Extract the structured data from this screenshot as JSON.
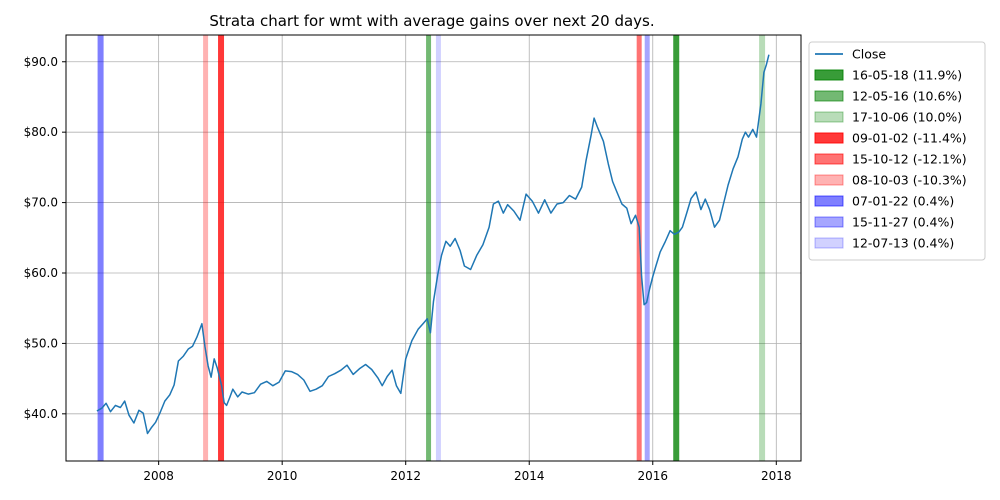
{
  "chart_data": {
    "type": "line",
    "title": "Strata chart for wmt with average gains over next 20 days.",
    "xlabel": "",
    "ylabel": "",
    "grid": true,
    "legend_position": "right-outside-top",
    "xlim": [
      2006.5,
      2018.4
    ],
    "ylim": [
      33.3,
      93.8
    ],
    "x_ticks": [
      2008,
      2010,
      2012,
      2014,
      2016,
      2018
    ],
    "x_tick_labels": [
      "2008",
      "2010",
      "2012",
      "2014",
      "2016",
      "2018"
    ],
    "y_ticks": [
      40,
      50,
      60,
      70,
      80,
      90
    ],
    "y_tick_labels": [
      "$40.0",
      "$50.0",
      "$60.0",
      "$70.0",
      "$80.0",
      "$90.0"
    ],
    "series": [
      {
        "name": "Close",
        "color": "#1f77b4",
        "x": [
          2007.0,
          2007.08,
          2007.15,
          2007.22,
          2007.3,
          2007.38,
          2007.45,
          2007.52,
          2007.6,
          2007.68,
          2007.75,
          2007.82,
          2007.88,
          2007.95,
          2008.02,
          2008.1,
          2008.18,
          2008.25,
          2008.32,
          2008.4,
          2008.48,
          2008.55,
          2008.62,
          2008.7,
          2008.75,
          2008.8,
          2008.85,
          2008.9,
          2008.95,
          2009.02,
          2009.06,
          2009.1,
          2009.15,
          2009.2,
          2009.28,
          2009.35,
          2009.45,
          2009.55,
          2009.65,
          2009.75,
          2009.85,
          2009.95,
          2010.05,
          2010.15,
          2010.25,
          2010.35,
          2010.45,
          2010.55,
          2010.65,
          2010.75,
          2010.85,
          2010.95,
          2011.05,
          2011.15,
          2011.25,
          2011.35,
          2011.45,
          2011.55,
          2011.62,
          2011.7,
          2011.78,
          2011.85,
          2011.92,
          2012.0,
          2012.1,
          2012.2,
          2012.28,
          2012.35,
          2012.4,
          2012.45,
          2012.52,
          2012.58,
          2012.65,
          2012.72,
          2012.8,
          2012.88,
          2012.95,
          2013.05,
          2013.15,
          2013.25,
          2013.35,
          2013.42,
          2013.5,
          2013.58,
          2013.65,
          2013.75,
          2013.85,
          2013.95,
          2014.05,
          2014.15,
          2014.25,
          2014.35,
          2014.45,
          2014.55,
          2014.65,
          2014.75,
          2014.85,
          2014.92,
          2015.0,
          2015.05,
          2015.1,
          2015.2,
          2015.28,
          2015.35,
          2015.42,
          2015.5,
          2015.58,
          2015.65,
          2015.72,
          2015.78,
          2015.82,
          2015.86,
          2015.9,
          2015.95,
          2016.0,
          2016.05,
          2016.12,
          2016.2,
          2016.28,
          2016.35,
          2016.42,
          2016.48,
          2016.55,
          2016.62,
          2016.7,
          2016.78,
          2016.85,
          2016.92,
          2017.0,
          2017.08,
          2017.15,
          2017.22,
          2017.3,
          2017.38,
          2017.45,
          2017.5,
          2017.55,
          2017.62,
          2017.68,
          2017.75,
          2017.8,
          2017.84,
          2017.88
        ],
        "values": [
          40.4,
          40.8,
          41.5,
          40.3,
          41.2,
          40.9,
          41.8,
          39.8,
          38.7,
          40.5,
          40.1,
          37.2,
          38.0,
          38.8,
          40.1,
          41.8,
          42.7,
          44.1,
          47.5,
          48.2,
          49.2,
          49.6,
          50.9,
          52.8,
          49.5,
          46.8,
          45.2,
          47.8,
          46.5,
          44.0,
          41.6,
          41.2,
          42.3,
          43.5,
          42.4,
          43.1,
          42.8,
          43.0,
          44.2,
          44.6,
          44.0,
          44.5,
          46.1,
          46.0,
          45.6,
          44.8,
          43.2,
          43.5,
          44.0,
          45.3,
          45.7,
          46.2,
          46.9,
          45.6,
          46.4,
          47.0,
          46.3,
          45.1,
          44.0,
          45.3,
          46.2,
          44.0,
          42.9,
          47.8,
          50.4,
          52.0,
          52.8,
          53.5,
          51.5,
          56.0,
          59.8,
          62.5,
          64.5,
          63.8,
          64.9,
          63.2,
          61.0,
          60.5,
          62.5,
          64.0,
          66.5,
          69.8,
          70.2,
          68.5,
          69.7,
          68.8,
          67.5,
          71.2,
          70.2,
          68.5,
          70.4,
          68.5,
          69.8,
          70.0,
          71.0,
          70.5,
          72.2,
          76.0,
          79.5,
          82.0,
          80.8,
          78.7,
          75.5,
          73.0,
          71.5,
          69.8,
          69.2,
          67.0,
          68.2,
          66.5,
          59.5,
          55.5,
          55.8,
          57.8,
          59.5,
          61.0,
          63.0,
          64.4,
          66.0,
          65.5,
          65.8,
          66.5,
          68.5,
          70.6,
          71.5,
          69.0,
          70.5,
          69.0,
          66.5,
          67.5,
          70.0,
          72.5,
          74.8,
          76.5,
          79.0,
          80.0,
          79.3,
          80.4,
          79.3,
          84.0,
          88.5,
          89.6,
          91.0
        ]
      }
    ],
    "strata": [
      {
        "label": "16-05-18 (11.9%)",
        "x": 2016.38,
        "color": "#008000",
        "opacity": 0.78,
        "width": 6
      },
      {
        "label": "12-05-16 (10.6%)",
        "x": 2012.37,
        "color": "#008000",
        "opacity": 0.55,
        "width": 5
      },
      {
        "label": "17-10-06 (10.0%)",
        "x": 2017.77,
        "color": "#008000",
        "opacity": 0.28,
        "width": 6
      },
      {
        "label": "09-01-02 (-11.4%)",
        "x": 2009.01,
        "color": "#ff0000",
        "opacity": 0.78,
        "width": 6
      },
      {
        "label": "15-10-12 (-12.1%)",
        "x": 2015.78,
        "color": "#ff0000",
        "opacity": 0.55,
        "width": 5
      },
      {
        "label": "08-10-03 (-10.3%)",
        "x": 2008.76,
        "color": "#ff0000",
        "opacity": 0.3,
        "width": 5
      },
      {
        "label": "07-01-22 (0.4%)",
        "x": 2007.06,
        "color": "#0000ff",
        "opacity": 0.5,
        "width": 6
      },
      {
        "label": "15-11-27 (0.4%)",
        "x": 2015.91,
        "color": "#0000ff",
        "opacity": 0.35,
        "width": 5
      },
      {
        "label": "12-07-13 (0.4%)",
        "x": 2012.53,
        "color": "#0000ff",
        "opacity": 0.18,
        "width": 5
      }
    ]
  }
}
